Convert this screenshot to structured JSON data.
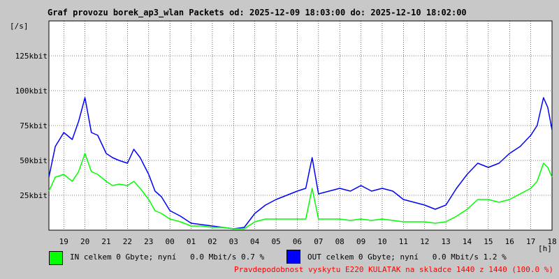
{
  "chart_data": {
    "type": "line",
    "title": "Graf provozu borek_ap3_wlan Packets od: 2025-12-09 18:03:00 do: 2025-12-10 18:02:00",
    "ylabel": "[/s]",
    "xlabel": "[h]",
    "ylim": [
      0,
      150
    ],
    "x_range_hours": [
      18.3,
      42.0
    ],
    "grid": true,
    "y_ticks": [
      {
        "value": 25,
        "label": "25kbit"
      },
      {
        "value": 50,
        "label": "50kbit"
      },
      {
        "value": 75,
        "label": "75kbit"
      },
      {
        "value": 100,
        "label": "100kbit"
      },
      {
        "value": 125,
        "label": "125kbit"
      }
    ],
    "x_ticks": [
      {
        "value": 19,
        "label": "19"
      },
      {
        "value": 20,
        "label": "20"
      },
      {
        "value": 21,
        "label": "21"
      },
      {
        "value": 22,
        "label": "22"
      },
      {
        "value": 23,
        "label": "23"
      },
      {
        "value": 24,
        "label": "00"
      },
      {
        "value": 25,
        "label": "01"
      },
      {
        "value": 26,
        "label": "02"
      },
      {
        "value": 27,
        "label": "03"
      },
      {
        "value": 28,
        "label": "04"
      },
      {
        "value": 29,
        "label": "05"
      },
      {
        "value": 30,
        "label": "06"
      },
      {
        "value": 31,
        "label": "07"
      },
      {
        "value": 32,
        "label": "08"
      },
      {
        "value": 33,
        "label": "09"
      },
      {
        "value": 34,
        "label": "10"
      },
      {
        "value": 35,
        "label": "11"
      },
      {
        "value": 36,
        "label": "12"
      },
      {
        "value": 37,
        "label": "13"
      },
      {
        "value": 38,
        "label": "14"
      },
      {
        "value": 39,
        "label": "15"
      },
      {
        "value": 40,
        "label": "16"
      },
      {
        "value": 41,
        "label": "17"
      },
      {
        "value": 42,
        "label": "18"
      }
    ],
    "series": [
      {
        "name": "OUT",
        "color": "#0000ff",
        "x": [
          18.3,
          18.6,
          19.0,
          19.4,
          19.7,
          20.0,
          20.3,
          20.6,
          21.0,
          21.3,
          21.6,
          22.0,
          22.3,
          22.6,
          23.0,
          23.3,
          23.6,
          24.0,
          24.5,
          25.0,
          25.5,
          26.0,
          26.5,
          27.0,
          27.5,
          28.0,
          28.5,
          29.0,
          29.5,
          30.0,
          30.4,
          30.7,
          31.0,
          31.5,
          32.0,
          32.5,
          33.0,
          33.5,
          34.0,
          34.5,
          35.0,
          35.5,
          36.0,
          36.5,
          37.0,
          37.5,
          38.0,
          38.5,
          39.0,
          39.5,
          40.0,
          40.5,
          41.0,
          41.3,
          41.6,
          41.8,
          42.0
        ],
        "values": [
          38,
          60,
          70,
          65,
          78,
          95,
          70,
          68,
          55,
          52,
          50,
          48,
          58,
          52,
          40,
          28,
          24,
          14,
          10,
          5,
          4,
          3,
          2,
          1,
          2,
          12,
          18,
          22,
          25,
          28,
          30,
          52,
          26,
          28,
          30,
          28,
          32,
          28,
          30,
          28,
          22,
          20,
          18,
          15,
          18,
          30,
          40,
          48,
          45,
          48,
          55,
          60,
          68,
          75,
          95,
          88,
          72
        ]
      },
      {
        "name": "IN",
        "color": "#00ff00",
        "x": [
          18.3,
          18.6,
          19.0,
          19.4,
          19.7,
          20.0,
          20.3,
          20.6,
          21.0,
          21.3,
          21.6,
          22.0,
          22.3,
          22.6,
          23.0,
          23.3,
          23.6,
          24.0,
          24.5,
          25.0,
          25.5,
          26.0,
          26.5,
          27.0,
          27.5,
          28.0,
          28.5,
          29.0,
          29.5,
          30.0,
          30.4,
          30.7,
          31.0,
          31.5,
          32.0,
          32.5,
          33.0,
          33.5,
          34.0,
          34.5,
          35.0,
          35.5,
          36.0,
          36.5,
          37.0,
          37.5,
          38.0,
          38.5,
          39.0,
          39.5,
          40.0,
          40.5,
          41.0,
          41.3,
          41.6,
          41.8,
          42.0
        ],
        "values": [
          28,
          38,
          40,
          35,
          42,
          55,
          42,
          40,
          35,
          32,
          33,
          32,
          35,
          30,
          22,
          14,
          12,
          8,
          6,
          3,
          3,
          2,
          2,
          1,
          1,
          6,
          8,
          8,
          8,
          8,
          8,
          30,
          8,
          8,
          8,
          7,
          8,
          7,
          8,
          7,
          6,
          6,
          6,
          5,
          6,
          10,
          15,
          22,
          22,
          20,
          22,
          26,
          30,
          35,
          48,
          45,
          38
        ]
      }
    ]
  },
  "legend": {
    "in_text": "IN celkem 0 Gbyte; nyní   0.0 Mbit/s 0.7 %",
    "in_color": "#00ff00",
    "out_text": "OUT celkem 0 Gbyte; nyní   0.0 Mbit/s 1.2 %",
    "out_color": "#0000ff"
  },
  "footer": {
    "text": "Pravdepodobnost vyskytu E220 KULATAK na skladce 1440 z 1440 (100.0 %)",
    "color": "#ff0000"
  }
}
